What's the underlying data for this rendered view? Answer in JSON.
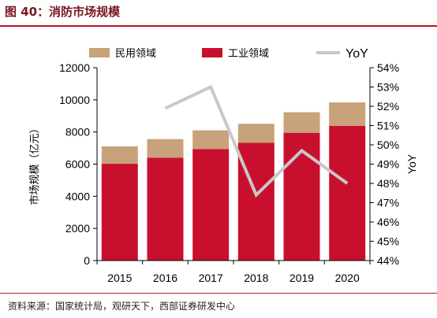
{
  "title": "图 40：消防市场规模",
  "source": "资料来源：国家统计局，观研天下，西部证券研发中心",
  "chart_data": {
    "type": "bar",
    "stacked": true,
    "categories": [
      "2015",
      "2016",
      "2017",
      "2018",
      "2019",
      "2020"
    ],
    "series": [
      {
        "name": "工业领域",
        "type": "bar",
        "axis": "left",
        "color": "#c8102e",
        "values": [
          6020,
          6400,
          6930,
          7330,
          7950,
          8380
        ]
      },
      {
        "name": "民用领域",
        "type": "bar",
        "axis": "left",
        "color": "#c8a27a",
        "values": [
          1080,
          1160,
          1170,
          1180,
          1280,
          1460
        ]
      },
      {
        "name": "YoY",
        "type": "line",
        "axis": "right",
        "color": "#c8c8c8",
        "values": [
          null,
          0.519,
          0.53,
          0.474,
          0.497,
          0.48
        ]
      }
    ],
    "legend_order": [
      "民用领域",
      "工业领域",
      "YoY"
    ],
    "legend_position": "top",
    "y_left": {
      "label": "市场规模（亿元）",
      "min": 0,
      "max": 12000,
      "ticks": [
        0,
        2000,
        4000,
        6000,
        8000,
        10000,
        12000
      ]
    },
    "y_right": {
      "label": "YoY",
      "min": 0.44,
      "max": 0.54,
      "tick_labels": [
        "44%",
        "45%",
        "46%",
        "47%",
        "48%",
        "49%",
        "50%",
        "51%",
        "52%",
        "53%",
        "54%"
      ]
    },
    "grid": false
  }
}
